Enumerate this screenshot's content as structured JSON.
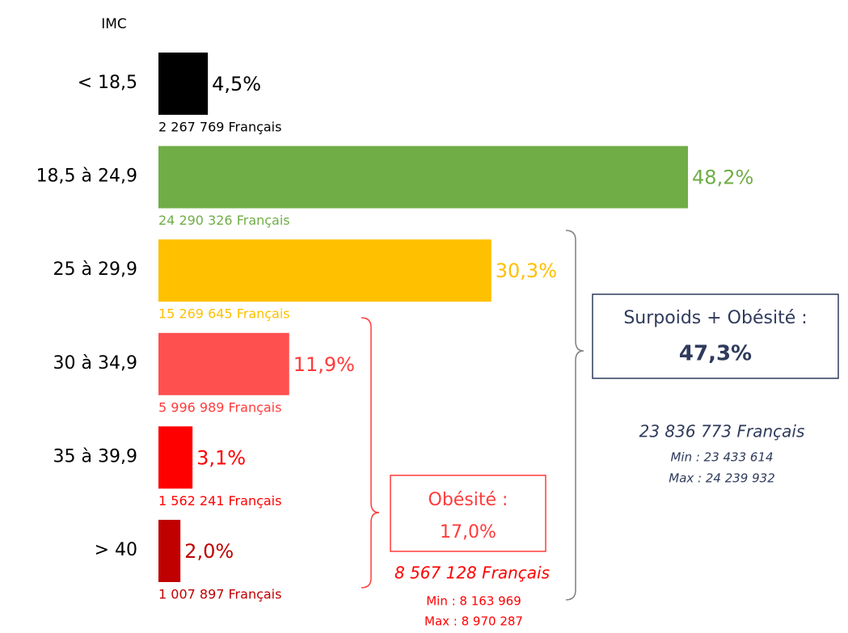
{
  "chart_data": {
    "type": "bar",
    "orientation": "horizontal",
    "axis_label": "IMC",
    "categories": [
      "< 18,5",
      "18,5 à 24,9",
      "25 à 29,9",
      "30 à 34,9",
      "35 à 39,9",
      "> 40"
    ],
    "values": [
      4.5,
      48.2,
      30.3,
      11.9,
      3.1,
      2.0
    ],
    "value_labels": [
      "4,5%",
      "48,2%",
      "30,3%",
      "11,9%",
      "3,1%",
      "2,0%"
    ],
    "counts": [
      "2 267 769 Français",
      "24 290 326 Français",
      "15 269 645 Français",
      "5 996 989 Français",
      "1 562 241 Français",
      "1 007 897 Français"
    ],
    "colors": [
      "#000000",
      "#70ad47",
      "#ffc000",
      "#ff5050",
      "#ff0000",
      "#c00000"
    ],
    "label_colors": [
      "#000000",
      "#70ad47",
      "#ffc000",
      "#ff3b3b",
      "#ff0000",
      "#c00000"
    ],
    "annotations": {
      "overweight": {
        "label": "Surpoids + Obésité :",
        "value": "47,3%",
        "count": "23 836 773 Français",
        "min": "Min : 23 433 614",
        "max": "Max : 24 239 932"
      },
      "obesity": {
        "label": "Obésité :",
        "value": "17,0%",
        "count": "8 567 128 Français",
        "min": "Min : 8 163 969",
        "max": "Max : 8 970 287"
      }
    }
  }
}
